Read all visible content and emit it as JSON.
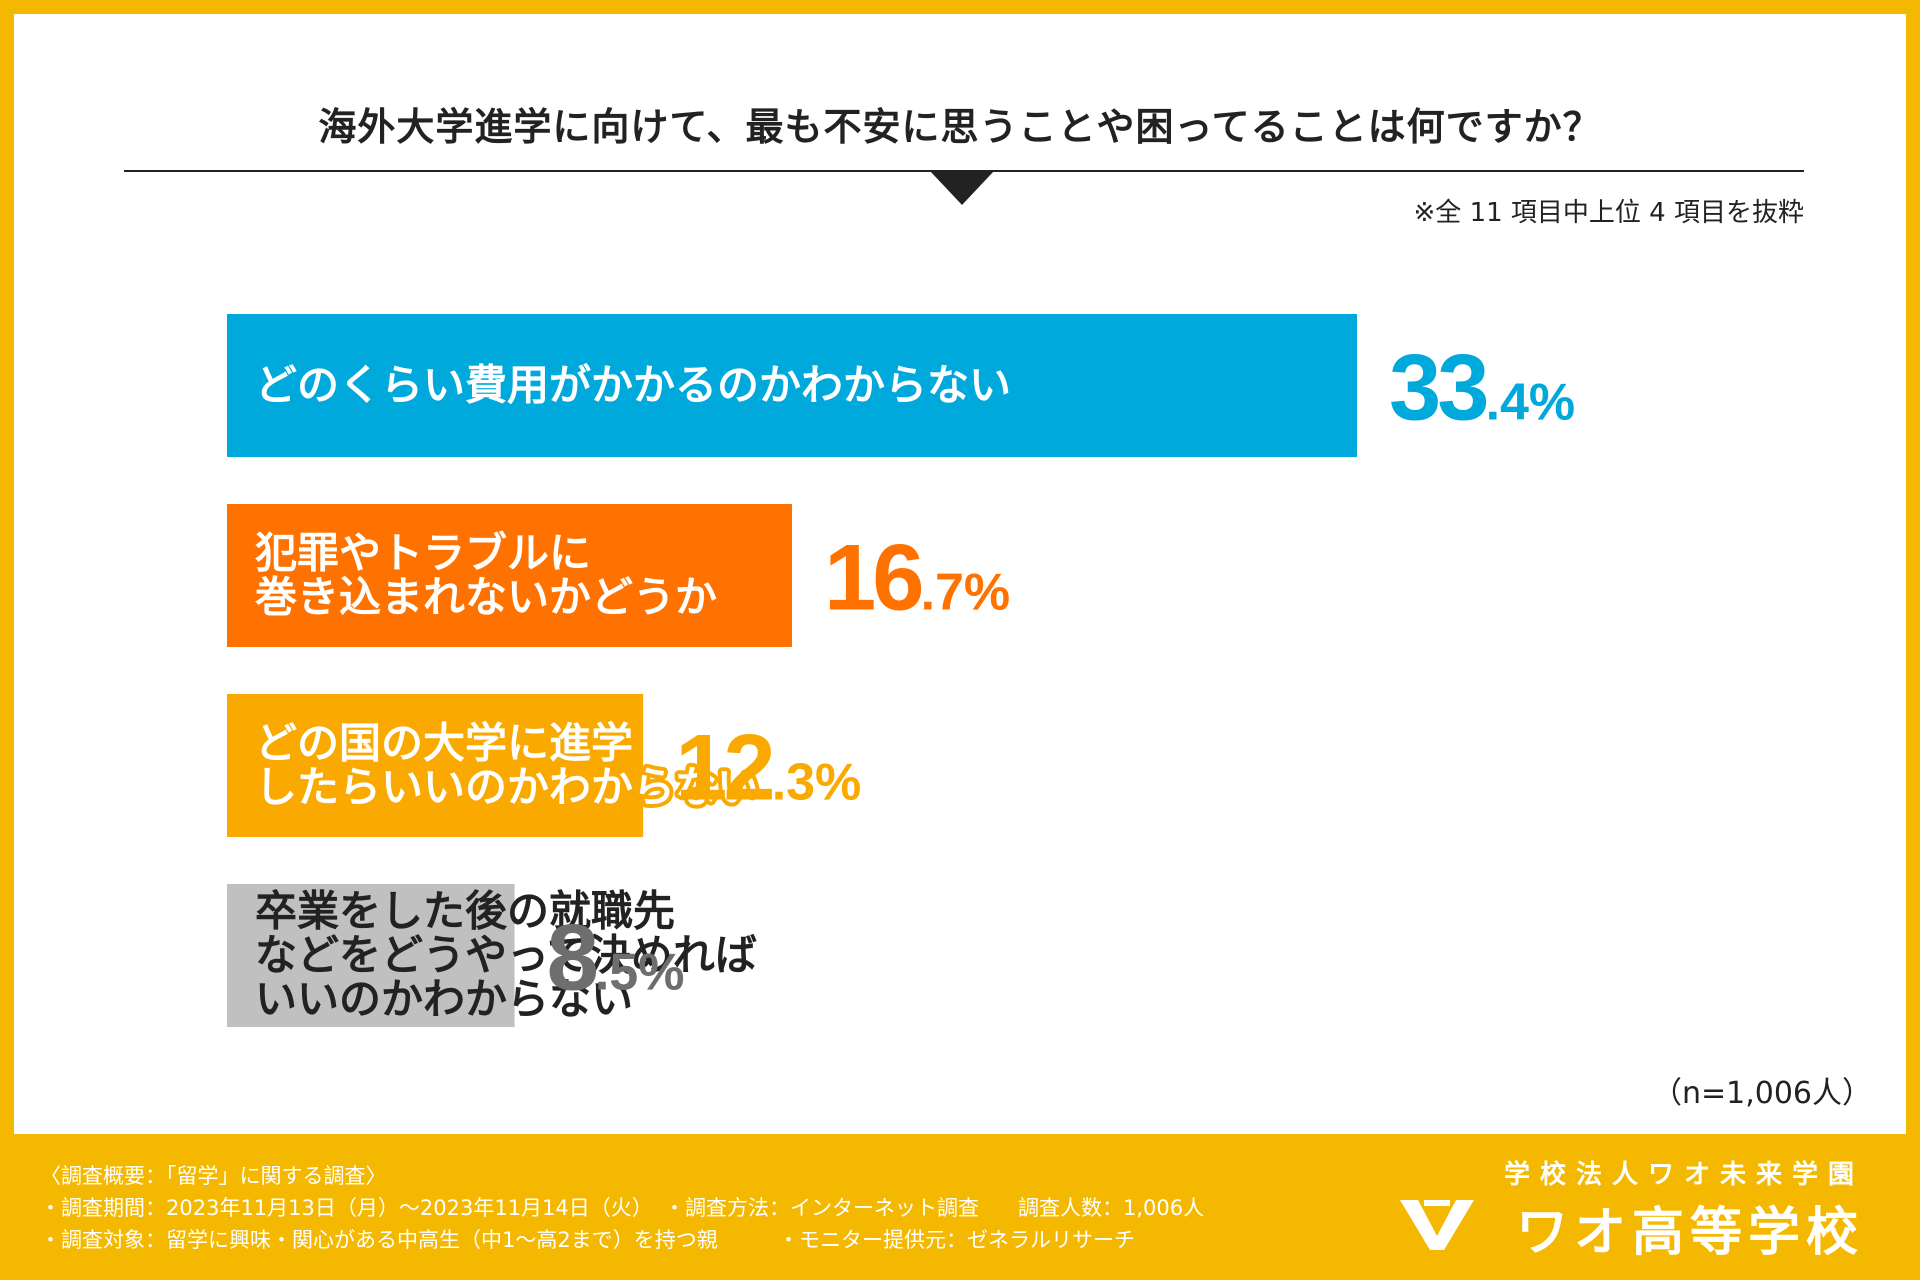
{
  "header": {
    "title": "海外大学進学に向けて、最も不安に思うことや困ってることは何ですか？",
    "note": "※全 11 項目中上位 4 項目を抜粋"
  },
  "colors": {
    "frame": "#f5b800",
    "bar_1": "#00a9dc",
    "bar_2": "#ff7200",
    "bar_3": "#f9a900",
    "bar_4": "#c0c0c0",
    "value_4": "#6e6e6e"
  },
  "chart_data": {
    "type": "bar",
    "orientation": "horizontal",
    "unit": "%",
    "categories": [
      "どのくらい費用がかかるのかわからない",
      "犯罪やトラブルに巻き込まれないかどうか",
      "どの国の大学に進学したらいいのかわからない",
      "卒業をした後の就職先などをどうやって決めればいいのかわからない"
    ],
    "label_lines": [
      [
        "どのくらい費用がかかるのかわからない"
      ],
      [
        "犯罪やトラブルに",
        "巻き込まれないかどうか"
      ],
      [
        "どの国の大学に進学",
        "したらいいのかわからない"
      ],
      [
        "卒業をした後の就職先",
        "などをどうやって決めれば",
        "いいのかわからない"
      ]
    ],
    "values": [
      33.4,
      16.7,
      12.3,
      8.5
    ],
    "value_labels": [
      {
        "int": "33",
        "dec": ".4%"
      },
      {
        "int": "16",
        "dec": ".7%"
      },
      {
        "int": "12",
        "dec": ".3%"
      },
      {
        "int": "8",
        "dec": ".5%"
      }
    ],
    "xlim": [
      0,
      33.4
    ],
    "grid": false,
    "legend": "none"
  },
  "sample_size": "（n=1,006人）",
  "footer": {
    "survey_title": "〈調査概要：「留学」に関する調査〉",
    "period": "・調査期間：2023年11月13日（月）〜2023年11月14日（火）",
    "method": "・調査方法：インターネット調査",
    "count": "調査人数：1,006人",
    "target": "・調査対象：留学に興味・関心がある中高生（中1〜高2まで）を持つ親",
    "provider": "・モニター提供元：ゼネラルリサーチ",
    "brand_sub": "学校法人ワオ未来学園",
    "brand_name": "ワオ高等学校",
    "logo_icon": "wao-logo-icon"
  }
}
